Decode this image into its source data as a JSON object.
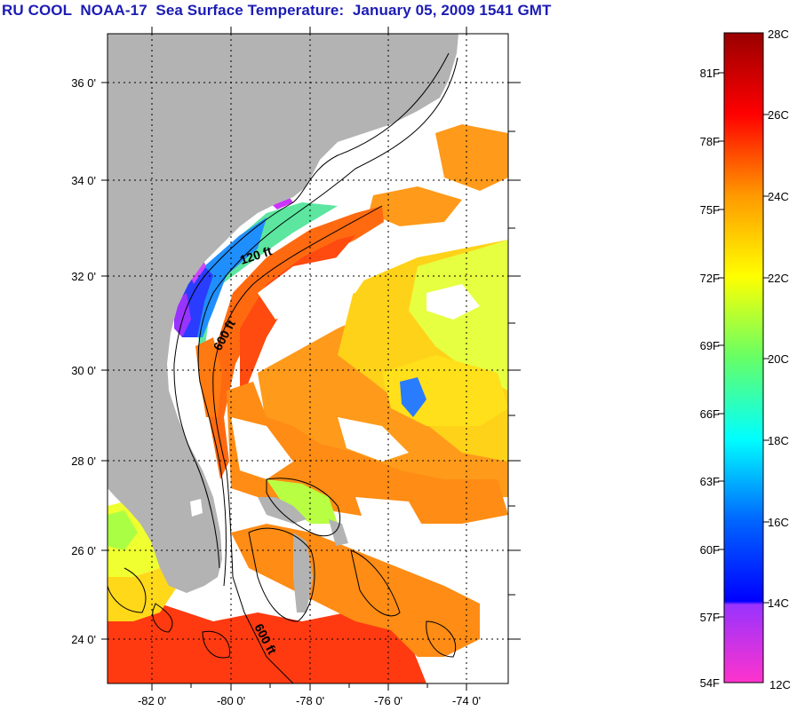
{
  "title": "RU COOL  NOAA-17  Sea Surface Temperature:  January 05, 2009 1541 GMT",
  "map": {
    "lat_labels": [
      "36 0'",
      "34 0'",
      "32 0'",
      "30 0'",
      "28 0'",
      "26 0'",
      "24 0'"
    ],
    "lon_labels": [
      "-82 0'",
      "-80 0'",
      "-78 0'",
      "-76 0'",
      "-74 0'"
    ],
    "contour_labels": [
      "120 ft",
      "600 ft",
      "600 ft"
    ],
    "colors": {
      "land": "#b3b3b3",
      "cloud": "#ffffff",
      "frame": "#000000"
    }
  },
  "colorbar": {
    "fahrenheit_labels": [
      "81F",
      "78F",
      "75F",
      "72F",
      "69F",
      "66F",
      "63F",
      "60F",
      "57F",
      "54F"
    ],
    "celsius_labels": [
      "28C",
      "26C",
      "24C",
      "22C",
      "20C",
      "18C",
      "16C",
      "14C",
      "12C"
    ],
    "range_c": [
      12,
      28
    ],
    "range_f": [
      54,
      82
    ]
  }
}
